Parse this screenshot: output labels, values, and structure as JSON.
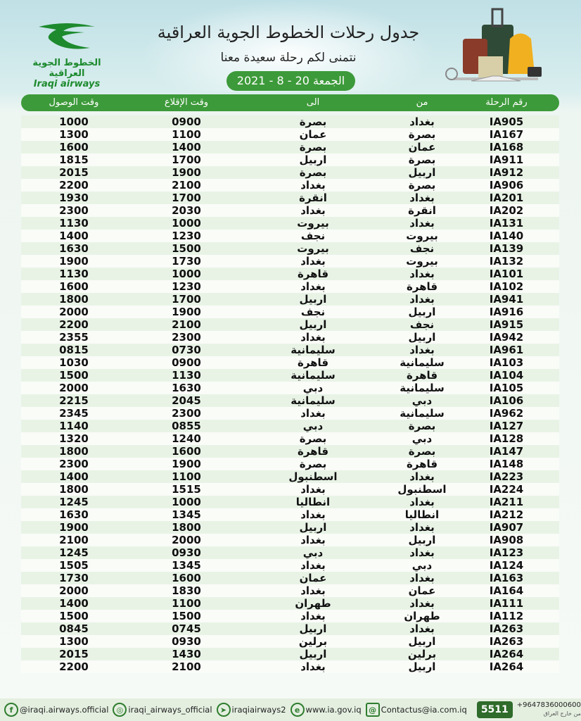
{
  "header": {
    "title": "جدول رحلات الخطوط الجوية العراقية",
    "subtitle": "نتمنى لكم رحلة سعيدة معنا",
    "date": "الجمعة 20 - 8 - 2021"
  },
  "logo": {
    "arabic": "الخطوط الجوية العراقية",
    "english": "Iraqi airways"
  },
  "colors": {
    "accent": "#3d9a3a",
    "row_alt": "#e8f3e6"
  },
  "table": {
    "columns": [
      "رقم الرحلة",
      "من",
      "الى",
      "وقت الإقلاع",
      "وقت الوصول"
    ],
    "rows": [
      [
        "IA905",
        "بغداد",
        "بصرة",
        "0900",
        "1000"
      ],
      [
        "IA167",
        "بصرة",
        "عمان",
        "1100",
        "1300"
      ],
      [
        "IA168",
        "عمان",
        "بصرة",
        "1400",
        "1600"
      ],
      [
        "IA911",
        "بصرة",
        "اربيل",
        "1700",
        "1815"
      ],
      [
        "IA912",
        "اربيل",
        "بصرة",
        "1900",
        "2015"
      ],
      [
        "IA906",
        "بصرة",
        "بغداد",
        "2100",
        "2200"
      ],
      [
        "IA201",
        "بغداد",
        "انقرة",
        "1700",
        "1930"
      ],
      [
        "IA202",
        "انقرة",
        "بغداد",
        "2030",
        "2300"
      ],
      [
        "IA131",
        "بغداد",
        "بيروت",
        "1000",
        "1130"
      ],
      [
        "IA140",
        "بيروت",
        "نجف",
        "1230",
        "1400"
      ],
      [
        "IA139",
        "نجف",
        "بيروت",
        "1500",
        "1630"
      ],
      [
        "IA132",
        "بيروت",
        "بغداد",
        "1730",
        "1900"
      ],
      [
        "IA101",
        "بغداد",
        "قاهرة",
        "1000",
        "1130"
      ],
      [
        "IA102",
        "قاهرة",
        "بغداد",
        "1230",
        "1600"
      ],
      [
        "IA941",
        "بغداد",
        "اربيل",
        "1700",
        "1800"
      ],
      [
        "IA916",
        "اربيل",
        "نجف",
        "1900",
        "2000"
      ],
      [
        "IA915",
        "نجف",
        "اربيل",
        "2100",
        "2200"
      ],
      [
        "IA942",
        "اربيل",
        "بغداد",
        "2300",
        "2355"
      ],
      [
        "IA961",
        "بغداد",
        "سليمانية",
        "0730",
        "0815"
      ],
      [
        "IA103",
        "سليمانية",
        "قاهرة",
        "0900",
        "1030"
      ],
      [
        "IA104",
        "قاهرة",
        "سليمانية",
        "1130",
        "1500"
      ],
      [
        "IA105",
        "سليمانية",
        "دبي",
        "1630",
        "2000"
      ],
      [
        "IA106",
        "دبي",
        "سليمانية",
        "2045",
        "2215"
      ],
      [
        "IA962",
        "سليمانية",
        "بغداد",
        "2300",
        "2345"
      ],
      [
        "IA127",
        "بصرة",
        "دبي",
        "0855",
        "1140"
      ],
      [
        "IA128",
        "دبي",
        "بصرة",
        "1240",
        "1320"
      ],
      [
        "IA147",
        "بصرة",
        "قاهرة",
        "1600",
        "1800"
      ],
      [
        "IA148",
        "قاهرة",
        "بصرة",
        "1900",
        "2300"
      ],
      [
        "IA223",
        "بغداد",
        "اسطنبول",
        "1100",
        "1400"
      ],
      [
        "IA224",
        "اسطنبول",
        "بغداد",
        "1515",
        "1800"
      ],
      [
        "IA211",
        "بغداد",
        "انطاليا",
        "1000",
        "1245"
      ],
      [
        "IA212",
        "انطاليا",
        "بغداد",
        "1345",
        "1630"
      ],
      [
        "IA907",
        "بغداد",
        "اربيل",
        "1800",
        "1900"
      ],
      [
        "IA908",
        "اربيل",
        "بغداد",
        "2000",
        "2100"
      ],
      [
        "IA123",
        "بغداد",
        "دبي",
        "0930",
        "1245"
      ],
      [
        "IA124",
        "دبي",
        "بغداد",
        "1345",
        "1505"
      ],
      [
        "IA163",
        "بغداد",
        "عمان",
        "1600",
        "1730"
      ],
      [
        "IA164",
        "عمان",
        "بغداد",
        "1830",
        "2000"
      ],
      [
        "IA111",
        "بغداد",
        "طهران",
        "1100",
        "1400"
      ],
      [
        "IA112",
        "طهران",
        "بغداد",
        "1500",
        "1500"
      ],
      [
        "IA263",
        "بغداد",
        "اربيل",
        "0745",
        "0845"
      ],
      [
        "IA263",
        "اربيل",
        "برلين",
        "0930",
        "1300"
      ],
      [
        "IA264",
        "برلين",
        "اربيل",
        "1430",
        "2015"
      ],
      [
        "IA264",
        "اربيل",
        "بغداد",
        "2100",
        "2200"
      ]
    ]
  },
  "footer": {
    "facebook": "@iraqi.airways.official",
    "instagram": "iraqi_airways_official",
    "telegram": "iraqiairways2",
    "website": "www.ia.gov.iq",
    "email": "Contactus@ia.com.iq",
    "hotline": "5511",
    "phone": "+9647836000600",
    "phone_note": "من خارج العراق"
  }
}
